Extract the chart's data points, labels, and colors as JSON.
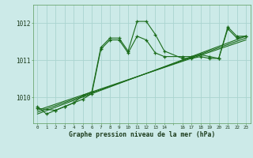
{
  "title": "Graphe pression niveau de la mer (hPa)",
  "bg_color": "#cceae8",
  "grid_color": "#aad4d0",
  "line_color": "#1a6b1a",
  "text_color": "#1a3a1a",
  "xlim": [
    -0.5,
    23.5
  ],
  "ylim": [
    1009.3,
    1012.5
  ],
  "yticks": [
    1010,
    1011,
    1012
  ],
  "xtick_labels": [
    "0",
    "1",
    "2",
    "3",
    "4",
    "5",
    "6",
    "7",
    "8",
    "9",
    "10",
    "11",
    "12",
    "13",
    "14",
    "",
    "16",
    "17",
    "18",
    "19",
    "20",
    "21",
    "22",
    "23"
  ],
  "xtick_vals": [
    0,
    1,
    2,
    3,
    4,
    5,
    6,
    7,
    8,
    9,
    10,
    11,
    12,
    13,
    14,
    15,
    16,
    17,
    18,
    19,
    20,
    21,
    22,
    23
  ],
  "series1_x": [
    0,
    1,
    2,
    3,
    4,
    5,
    6,
    7,
    8,
    9,
    10,
    11,
    12,
    13,
    14,
    16,
    17,
    18,
    19,
    20,
    21,
    22,
    23
  ],
  "series1_y": [
    1009.75,
    1009.55,
    1009.65,
    1009.75,
    1009.85,
    1010.05,
    1010.15,
    1011.35,
    1011.6,
    1011.6,
    1011.25,
    1012.05,
    1012.05,
    1011.7,
    1011.25,
    1011.05,
    1011.05,
    1011.1,
    1011.05,
    1011.05,
    1011.9,
    1011.65,
    1011.65
  ],
  "series2_x": [
    0,
    2,
    3,
    4,
    5,
    6,
    7,
    8,
    9,
    10,
    11,
    12,
    13,
    14,
    16,
    17,
    18,
    19,
    20,
    21,
    22,
    23
  ],
  "series2_y": [
    1009.7,
    1009.65,
    1009.75,
    1009.85,
    1009.95,
    1010.1,
    1011.3,
    1011.55,
    1011.55,
    1011.2,
    1011.65,
    1011.55,
    1011.2,
    1011.1,
    1011.1,
    1011.1,
    1011.15,
    1011.1,
    1011.05,
    1011.85,
    1011.6,
    1011.65
  ],
  "line1_x": [
    0,
    23
  ],
  "line1_y": [
    1009.55,
    1011.65
  ],
  "line2_x": [
    0,
    23
  ],
  "line2_y": [
    1009.6,
    1011.6
  ],
  "line3_x": [
    0,
    23
  ],
  "line3_y": [
    1009.65,
    1011.55
  ]
}
